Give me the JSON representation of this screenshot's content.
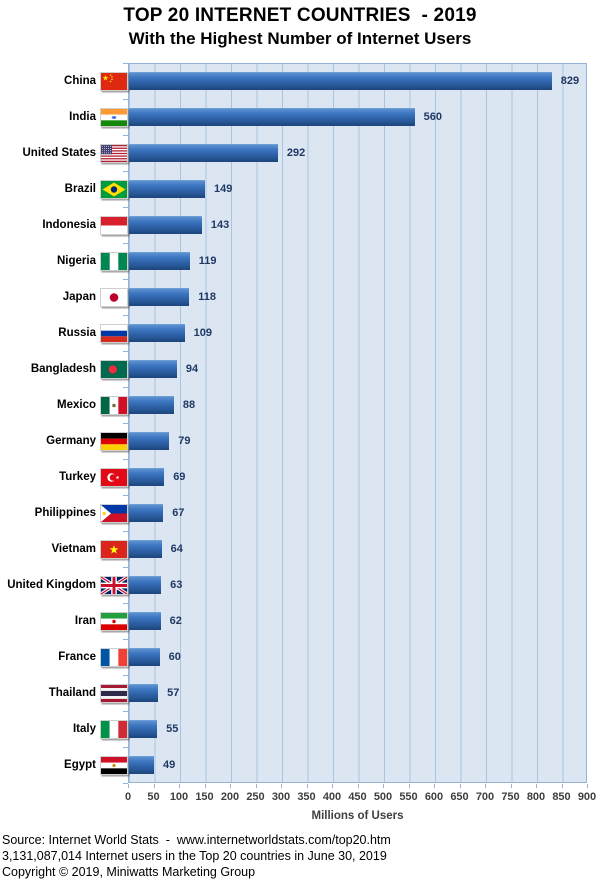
{
  "title": "TOP 20 INTERNET COUNTRIES  - 2019",
  "subtitle": "With the Highest Number of Internet Users",
  "chart_data": {
    "type": "bar",
    "orientation": "horizontal",
    "title": "TOP 20 INTERNET COUNTRIES  - 2019",
    "subtitle": "With the Highest Number of Internet Users",
    "categories": [
      "China",
      "India",
      "United States",
      "Brazil",
      "Indonesia",
      "Nigeria",
      "Japan",
      "Russia",
      "Bangladesh",
      "Mexico",
      "Germany",
      "Turkey",
      "Philippines",
      "Vietnam",
      "United Kingdom",
      "Iran",
      "France",
      "Thailand",
      "Italy",
      "Egypt"
    ],
    "values": [
      829,
      560,
      292,
      149,
      143,
      119,
      118,
      109,
      94,
      88,
      79,
      69,
      67,
      64,
      63,
      62,
      60,
      57,
      55,
      49
    ],
    "flags": [
      "cn",
      "in",
      "us",
      "br",
      "id",
      "ng",
      "jp",
      "ru",
      "bd",
      "mx",
      "de",
      "tr",
      "ph",
      "vn",
      "gb",
      "ir",
      "fr",
      "th",
      "it",
      "eg"
    ],
    "xlabel": "Millions of Users",
    "xlim": [
      0,
      900
    ],
    "x_ticks": [
      0,
      50,
      100,
      150,
      200,
      250,
      300,
      350,
      400,
      450,
      500,
      550,
      600,
      650,
      700,
      750,
      800,
      850,
      900
    ],
    "grid": true,
    "legend": false,
    "colors": {
      "plot_background": "#DCE6F2",
      "gridline": "#A9C4E0",
      "plot_border": "#95B3D7",
      "bar_gradient_top": "#5B90D2",
      "bar_gradient_bottom": "#1B4478",
      "value_label": "#1F3864",
      "axis_label": "#3F3F3F",
      "title_text": "#000000"
    }
  },
  "footer": {
    "line1": "Source: Internet World Stats  -  www.internetworldstats.com/top20.htm",
    "line2": "3,131,087,014 Internet users in the Top 20 countries in June 30, 2019",
    "line3": "Copyright © 2019, Miniwatts Marketing Group"
  }
}
